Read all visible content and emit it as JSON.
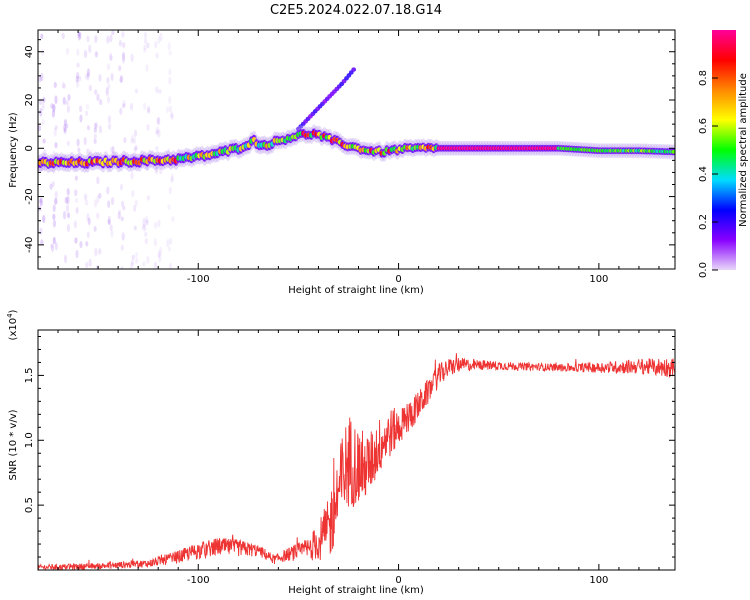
{
  "figure_title": "C2E5.2024.022.07.18.G14",
  "chart_data": [
    {
      "type": "heatmap",
      "xlabel": "Height of straight line (km)",
      "ylabel": "Frequency (Hz)",
      "xlim": [
        -180,
        138
      ],
      "ylim": [
        -50,
        49
      ],
      "xticks": [
        -100,
        0,
        100
      ],
      "yticks": [
        -40,
        -20,
        0,
        20,
        40
      ],
      "grid": false,
      "colorbar": {
        "label": "Normalized spectral amplitude",
        "range": [
          0,
          1
        ],
        "ticks": [
          0.0,
          0.2,
          0.4,
          0.6,
          0.8
        ],
        "tick_labels": [
          "0.0",
          "0.2",
          "0.4",
          "0.6",
          "0.8"
        ],
        "colors": [
          "#e8d8f8",
          "#8800ff",
          "#0000ff",
          "#00ddff",
          "#00ff00",
          "#ffff00",
          "#ff8800",
          "#ff0000",
          "#ff0099"
        ]
      },
      "ridge": {
        "x": [
          -180,
          -160,
          -140,
          -120,
          -110,
          -100,
          -90,
          -80,
          -72,
          -68,
          -60,
          -50,
          -42,
          -35,
          -25,
          -15,
          -8,
          0,
          10,
          20,
          40,
          60,
          80,
          100,
          120,
          138
        ],
        "freq": [
          -6,
          -6,
          -5.5,
          -5,
          -4.5,
          -3.5,
          -2,
          0,
          3,
          1,
          3,
          5.5,
          6,
          4,
          1,
          -1,
          -1.5,
          -0.5,
          0,
          0,
          0,
          0,
          0,
          -1,
          -1,
          -1.5
        ]
      },
      "upper_branch": {
        "x": [
          -50,
          -42,
          -35,
          -28,
          -22
        ],
        "freq": [
          8,
          15,
          21,
          27,
          33
        ]
      }
    },
    {
      "type": "line",
      "xlabel": "Height of straight line (km)",
      "ylabel": "SNR (10 * v/v)",
      "y_multiplier_label": "(x10",
      "y_multiplier_exp": "4",
      "y_multiplier_close": ")",
      "xlim": [
        -180,
        138
      ],
      "ylim": [
        0,
        18500
      ],
      "xticks": [
        -100,
        0,
        100
      ],
      "yticks": [
        5000,
        10000,
        15000
      ],
      "ytick_labels": [
        "0.5",
        "1.0",
        "1.5"
      ],
      "grid": false,
      "color": "#ee3333",
      "envelope": {
        "x": [
          -180,
          -150,
          -125,
          -110,
          -100,
          -90,
          -80,
          -70,
          -62,
          -55,
          -45,
          -40,
          -35,
          -30,
          -25,
          -20,
          -15,
          -10,
          -5,
          0,
          5,
          10,
          15,
          20,
          25,
          30,
          40,
          60,
          80,
          100,
          120,
          138
        ],
        "mean": [
          200,
          300,
          500,
          1000,
          1500,
          1800,
          1700,
          1500,
          800,
          1200,
          1600,
          2200,
          3000,
          6000,
          8500,
          8000,
          8000,
          9500,
          10500,
          11000,
          11800,
          12700,
          13800,
          15000,
          15600,
          15800,
          15800,
          15700,
          15600,
          15600,
          15700,
          15600
        ],
        "spread": [
          200,
          250,
          300,
          500,
          650,
          700,
          650,
          500,
          350,
          500,
          900,
          1500,
          2500,
          3500,
          3800,
          3000,
          2500,
          2200,
          2000,
          1500,
          1300,
          1100,
          1000,
          900,
          700,
          600,
          400,
          300,
          300,
          400,
          600,
          800
        ]
      }
    }
  ]
}
